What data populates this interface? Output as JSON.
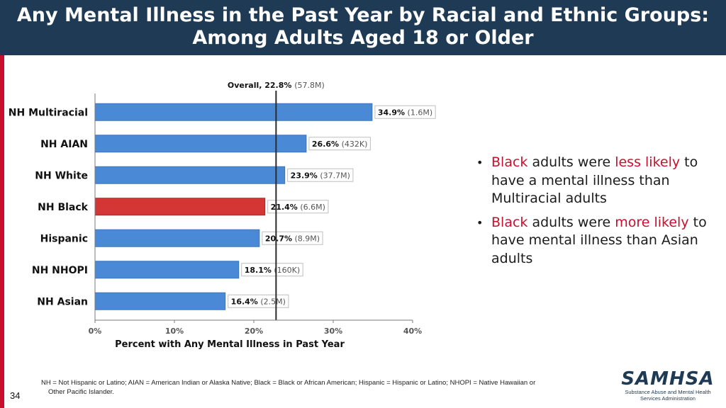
{
  "slide": {
    "title_line1": "Any Mental Illness in the Past Year by Racial and Ethnic Groups:",
    "title_line2": "Among Adults Aged 18 or Older",
    "page_number": "34"
  },
  "bullets": [
    {
      "seg1": "Black",
      "seg2": " adults were ",
      "seg3": "less likely",
      "seg4": " to have a mental illness than Multiracial adults"
    },
    {
      "seg1": "Black",
      "seg2": " adults were ",
      "seg3": "more likely",
      "seg4": " to have mental illness than Asian adults"
    }
  ],
  "footnote": {
    "line1": "NH = Not Hispanic or Latino; AIAN = American Indian or Alaska Native; Black = Black or African American; Hispanic = Hispanic or Latino; NHOPI = Native Hawaiian or",
    "line2": "Other Pacific Islander."
  },
  "logo": {
    "name": "SAMHSA",
    "subtitle_line1": "Substance Abuse and Mental Health",
    "subtitle_line2": "Services Administration"
  },
  "colors": {
    "bar": "#4a89d6",
    "highlight": "#d43535",
    "header": "#1f3a55",
    "accent_text": "#c8102e"
  },
  "chart_data": {
    "type": "bar",
    "orientation": "horizontal",
    "categories": [
      "NH Multiracial",
      "NH AIAN",
      "NH White",
      "NH Black",
      "Hispanic",
      "NH NHOPI",
      "NH Asian"
    ],
    "values": [
      34.9,
      26.6,
      23.9,
      21.4,
      20.7,
      18.1,
      16.4
    ],
    "counts": [
      "(1.6M)",
      "(432K)",
      "(37.7M)",
      "(6.6M)",
      "(8.9M)",
      "(160K)",
      "(2.5M)"
    ],
    "value_labels": [
      "34.9%",
      "26.6%",
      "23.9%",
      "21.4%",
      "20.7%",
      "18.1%",
      "16.4%"
    ],
    "highlight_category": "NH Black",
    "reference_line": {
      "value": 22.8,
      "label": "Overall, 22.8%",
      "count": "(57.8M)"
    },
    "xlim": [
      0,
      40
    ],
    "xticks": [
      0,
      10,
      20,
      30,
      40
    ],
    "xtick_labels": [
      "0%",
      "10%",
      "20%",
      "30%",
      "40%"
    ],
    "xlabel": "Percent with Any Mental Illness in Past Year",
    "ylabel": "",
    "title": ""
  }
}
